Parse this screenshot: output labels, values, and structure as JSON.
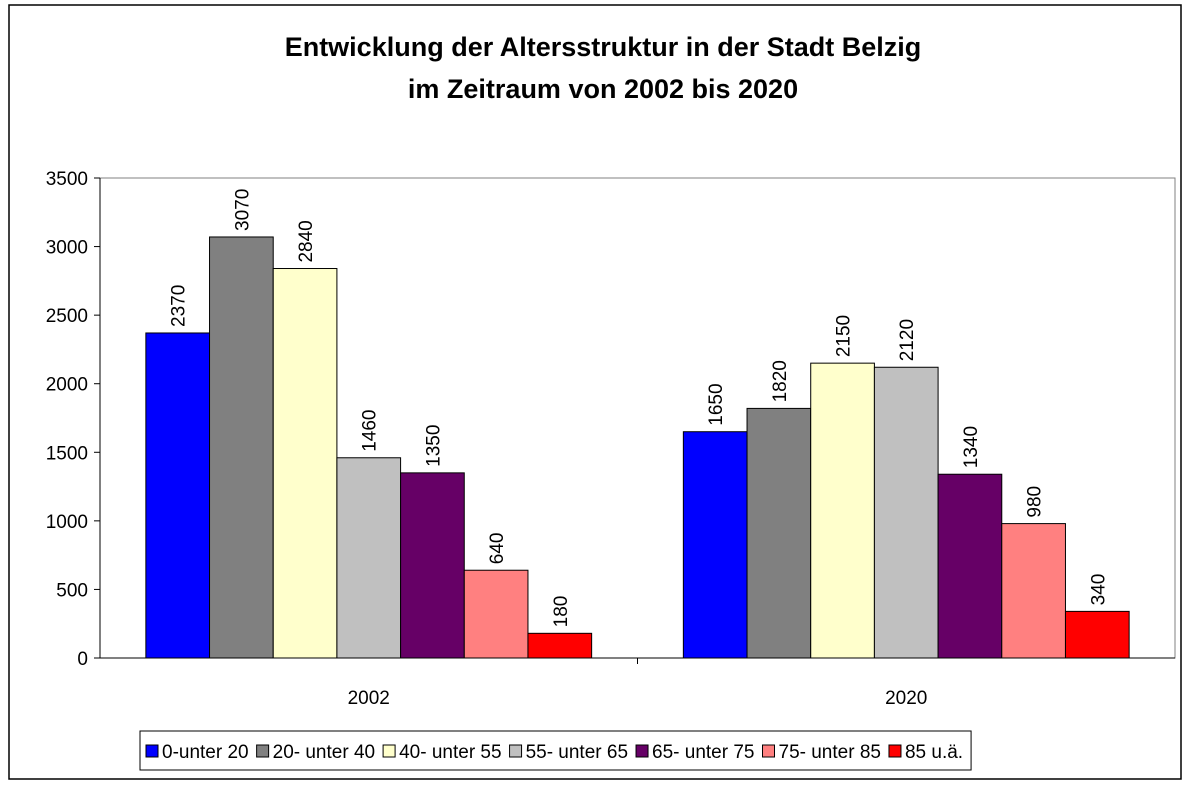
{
  "chart_data": {
    "type": "bar",
    "title": [
      "Entwicklung der Altersstruktur in der Stadt Belzig",
      "im Zeitraum von 2002 bis 2020"
    ],
    "categories": [
      "2002",
      "2020"
    ],
    "series": [
      {
        "name": "0-unter 20",
        "color": "#0000ff",
        "values": [
          2370,
          1650
        ]
      },
      {
        "name": "20- unter 40",
        "color": "#808080",
        "values": [
          3070,
          1820
        ]
      },
      {
        "name": "40- unter 55",
        "color": "#ffffcc",
        "values": [
          2840,
          2150
        ]
      },
      {
        "name": "55- unter 65",
        "color": "#c0c0c0",
        "values": [
          1460,
          2120
        ]
      },
      {
        "name": "65- unter 75",
        "color": "#660066",
        "values": [
          1350,
          1340
        ]
      },
      {
        "name": "75- unter 85",
        "color": "#ff8080",
        "values": [
          640,
          980
        ]
      },
      {
        "name": "85 u.ä.",
        "color": "#ff0000",
        "values": [
          180,
          340
        ]
      }
    ],
    "ylim": [
      0,
      3500
    ],
    "yticks": [
      0,
      500,
      1000,
      1500,
      2000,
      2500,
      3000,
      3500
    ],
    "legend": "bottom"
  }
}
